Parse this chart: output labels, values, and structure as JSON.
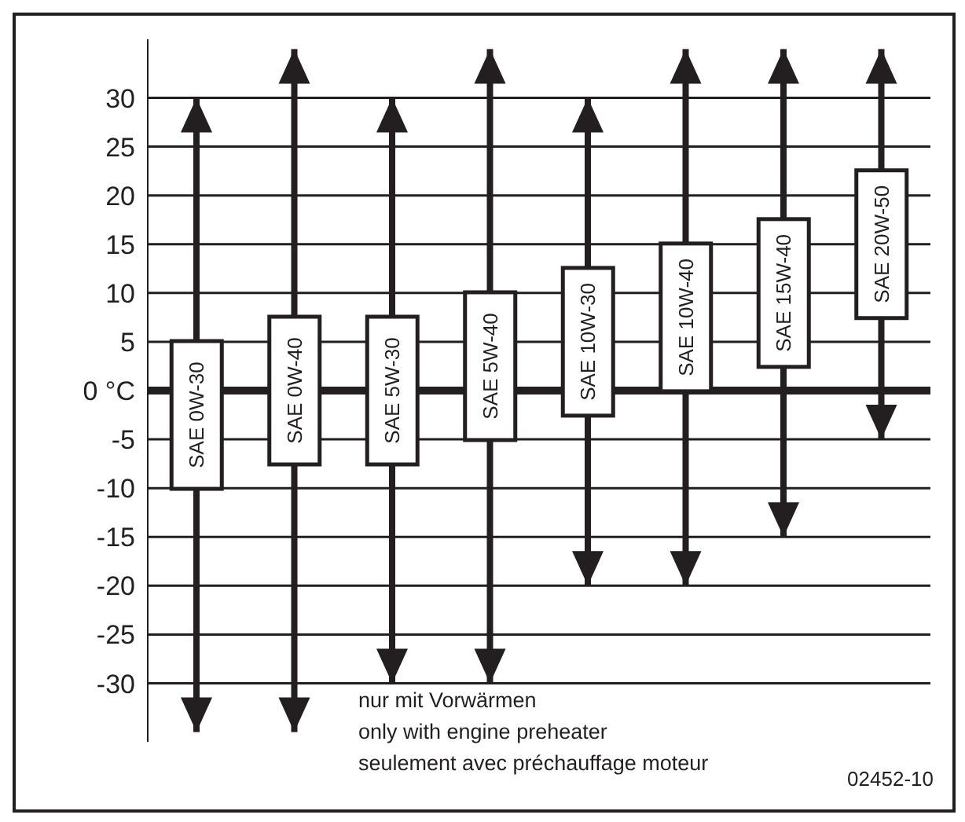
{
  "chart_data": {
    "type": "bar",
    "categories": [
      "SAE 0W-30",
      "SAE 0W-40",
      "SAE 5W-30",
      "SAE 5W-40",
      "SAE 10W-30",
      "SAE 10W-40",
      "SAE 15W-40",
      "SAE 20W-50"
    ],
    "base": [
      -35,
      -35,
      -30,
      -30,
      -20,
      -20,
      -15,
      -5
    ],
    "values": [
      65,
      70,
      60,
      65,
      50,
      55,
      50,
      40
    ],
    "color": "#231f20",
    "ylim": [
      -36,
      36
    ],
    "yticks": [
      -30,
      -25,
      -20,
      -15,
      -10,
      -5,
      {
        "value": 0,
        "label": "0 °C"
      },
      5,
      10,
      15,
      20,
      25,
      30
    ],
    "grid": "y",
    "annotations": [
      "nur mit Vorwärmen\nonly with engine preheater\nseulement avec préchauffage moteur",
      "02452-10"
    ]
  }
}
